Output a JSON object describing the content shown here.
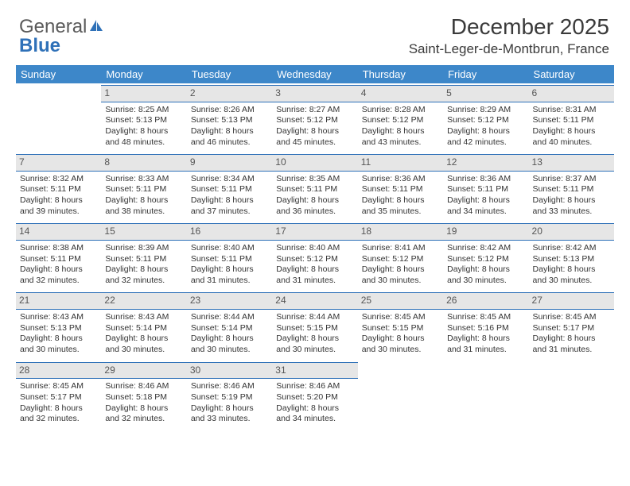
{
  "logo": {
    "general": "General",
    "blue": "Blue"
  },
  "header": {
    "title": "December 2025",
    "subtitle": "Saint-Leger-de-Montbrun, France"
  },
  "colors": {
    "header_bg": "#3d87c9",
    "header_text": "#ffffff",
    "daynum_bg": "#e6e6e6",
    "daynum_border": "#2f71b8",
    "body_text": "#333333",
    "logo_gray": "#5a5a5a",
    "logo_blue": "#2f71b8"
  },
  "weekdays": [
    "Sunday",
    "Monday",
    "Tuesday",
    "Wednesday",
    "Thursday",
    "Friday",
    "Saturday"
  ],
  "layout": {
    "leading_blanks": 1,
    "total_cells": 35
  },
  "days": [
    {
      "n": "1",
      "sr": "Sunrise: 8:25 AM",
      "ss": "Sunset: 5:13 PM",
      "d1": "Daylight: 8 hours",
      "d2": "and 48 minutes."
    },
    {
      "n": "2",
      "sr": "Sunrise: 8:26 AM",
      "ss": "Sunset: 5:13 PM",
      "d1": "Daylight: 8 hours",
      "d2": "and 46 minutes."
    },
    {
      "n": "3",
      "sr": "Sunrise: 8:27 AM",
      "ss": "Sunset: 5:12 PM",
      "d1": "Daylight: 8 hours",
      "d2": "and 45 minutes."
    },
    {
      "n": "4",
      "sr": "Sunrise: 8:28 AM",
      "ss": "Sunset: 5:12 PM",
      "d1": "Daylight: 8 hours",
      "d2": "and 43 minutes."
    },
    {
      "n": "5",
      "sr": "Sunrise: 8:29 AM",
      "ss": "Sunset: 5:12 PM",
      "d1": "Daylight: 8 hours",
      "d2": "and 42 minutes."
    },
    {
      "n": "6",
      "sr": "Sunrise: 8:31 AM",
      "ss": "Sunset: 5:11 PM",
      "d1": "Daylight: 8 hours",
      "d2": "and 40 minutes."
    },
    {
      "n": "7",
      "sr": "Sunrise: 8:32 AM",
      "ss": "Sunset: 5:11 PM",
      "d1": "Daylight: 8 hours",
      "d2": "and 39 minutes."
    },
    {
      "n": "8",
      "sr": "Sunrise: 8:33 AM",
      "ss": "Sunset: 5:11 PM",
      "d1": "Daylight: 8 hours",
      "d2": "and 38 minutes."
    },
    {
      "n": "9",
      "sr": "Sunrise: 8:34 AM",
      "ss": "Sunset: 5:11 PM",
      "d1": "Daylight: 8 hours",
      "d2": "and 37 minutes."
    },
    {
      "n": "10",
      "sr": "Sunrise: 8:35 AM",
      "ss": "Sunset: 5:11 PM",
      "d1": "Daylight: 8 hours",
      "d2": "and 36 minutes."
    },
    {
      "n": "11",
      "sr": "Sunrise: 8:36 AM",
      "ss": "Sunset: 5:11 PM",
      "d1": "Daylight: 8 hours",
      "d2": "and 35 minutes."
    },
    {
      "n": "12",
      "sr": "Sunrise: 8:36 AM",
      "ss": "Sunset: 5:11 PM",
      "d1": "Daylight: 8 hours",
      "d2": "and 34 minutes."
    },
    {
      "n": "13",
      "sr": "Sunrise: 8:37 AM",
      "ss": "Sunset: 5:11 PM",
      "d1": "Daylight: 8 hours",
      "d2": "and 33 minutes."
    },
    {
      "n": "14",
      "sr": "Sunrise: 8:38 AM",
      "ss": "Sunset: 5:11 PM",
      "d1": "Daylight: 8 hours",
      "d2": "and 32 minutes."
    },
    {
      "n": "15",
      "sr": "Sunrise: 8:39 AM",
      "ss": "Sunset: 5:11 PM",
      "d1": "Daylight: 8 hours",
      "d2": "and 32 minutes."
    },
    {
      "n": "16",
      "sr": "Sunrise: 8:40 AM",
      "ss": "Sunset: 5:11 PM",
      "d1": "Daylight: 8 hours",
      "d2": "and 31 minutes."
    },
    {
      "n": "17",
      "sr": "Sunrise: 8:40 AM",
      "ss": "Sunset: 5:12 PM",
      "d1": "Daylight: 8 hours",
      "d2": "and 31 minutes."
    },
    {
      "n": "18",
      "sr": "Sunrise: 8:41 AM",
      "ss": "Sunset: 5:12 PM",
      "d1": "Daylight: 8 hours",
      "d2": "and 30 minutes."
    },
    {
      "n": "19",
      "sr": "Sunrise: 8:42 AM",
      "ss": "Sunset: 5:12 PM",
      "d1": "Daylight: 8 hours",
      "d2": "and 30 minutes."
    },
    {
      "n": "20",
      "sr": "Sunrise: 8:42 AM",
      "ss": "Sunset: 5:13 PM",
      "d1": "Daylight: 8 hours",
      "d2": "and 30 minutes."
    },
    {
      "n": "21",
      "sr": "Sunrise: 8:43 AM",
      "ss": "Sunset: 5:13 PM",
      "d1": "Daylight: 8 hours",
      "d2": "and 30 minutes."
    },
    {
      "n": "22",
      "sr": "Sunrise: 8:43 AM",
      "ss": "Sunset: 5:14 PM",
      "d1": "Daylight: 8 hours",
      "d2": "and 30 minutes."
    },
    {
      "n": "23",
      "sr": "Sunrise: 8:44 AM",
      "ss": "Sunset: 5:14 PM",
      "d1": "Daylight: 8 hours",
      "d2": "and 30 minutes."
    },
    {
      "n": "24",
      "sr": "Sunrise: 8:44 AM",
      "ss": "Sunset: 5:15 PM",
      "d1": "Daylight: 8 hours",
      "d2": "and 30 minutes."
    },
    {
      "n": "25",
      "sr": "Sunrise: 8:45 AM",
      "ss": "Sunset: 5:15 PM",
      "d1": "Daylight: 8 hours",
      "d2": "and 30 minutes."
    },
    {
      "n": "26",
      "sr": "Sunrise: 8:45 AM",
      "ss": "Sunset: 5:16 PM",
      "d1": "Daylight: 8 hours",
      "d2": "and 31 minutes."
    },
    {
      "n": "27",
      "sr": "Sunrise: 8:45 AM",
      "ss": "Sunset: 5:17 PM",
      "d1": "Daylight: 8 hours",
      "d2": "and 31 minutes."
    },
    {
      "n": "28",
      "sr": "Sunrise: 8:45 AM",
      "ss": "Sunset: 5:17 PM",
      "d1": "Daylight: 8 hours",
      "d2": "and 32 minutes."
    },
    {
      "n": "29",
      "sr": "Sunrise: 8:46 AM",
      "ss": "Sunset: 5:18 PM",
      "d1": "Daylight: 8 hours",
      "d2": "and 32 minutes."
    },
    {
      "n": "30",
      "sr": "Sunrise: 8:46 AM",
      "ss": "Sunset: 5:19 PM",
      "d1": "Daylight: 8 hours",
      "d2": "and 33 minutes."
    },
    {
      "n": "31",
      "sr": "Sunrise: 8:46 AM",
      "ss": "Sunset: 5:20 PM",
      "d1": "Daylight: 8 hours",
      "d2": "and 34 minutes."
    }
  ]
}
